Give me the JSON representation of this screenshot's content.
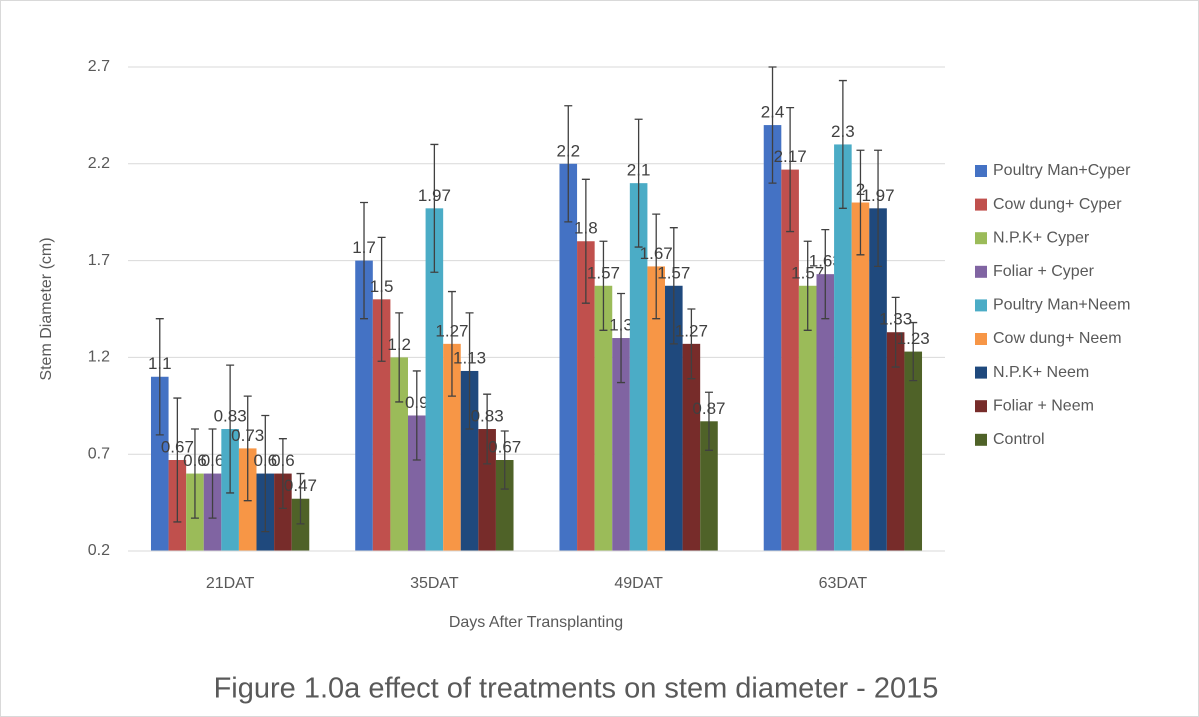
{
  "chart_data": {
    "type": "bar",
    "caption": "Figure 1.0a effect of treatments on stem diameter - 2015",
    "x_label": "Days After Transplanting",
    "y_label": "Stem Diameter (cm)",
    "categories": [
      "21DAT",
      "35DAT",
      "49DAT",
      "63DAT"
    ],
    "ylim": [
      0.2,
      2.7
    ],
    "yticks": [
      0.2,
      0.7,
      1.2,
      1.7,
      2.2,
      2.7
    ],
    "grid": true,
    "legend": "right",
    "series": [
      {
        "name": "Poultry Man+Cyper",
        "color": "#4472c4",
        "values": [
          1.1,
          1.7,
          2.2,
          2.4
        ],
        "errors": [
          0.3,
          0.3,
          0.3,
          0.3
        ]
      },
      {
        "name": "Cow dung+ Cyper",
        "color": "#c0504d",
        "values": [
          0.67,
          1.5,
          1.8,
          2.17
        ],
        "errors": [
          0.32,
          0.32,
          0.32,
          0.32
        ]
      },
      {
        "name": "N.P.K+ Cyper",
        "color": "#9bbb59",
        "values": [
          0.6,
          1.2,
          1.57,
          1.57
        ],
        "errors": [
          0.23,
          0.23,
          0.23,
          0.23
        ]
      },
      {
        "name": "Foliar + Cyper",
        "color": "#8064a2",
        "values": [
          0.6,
          0.9,
          1.3,
          1.63
        ],
        "errors": [
          0.23,
          0.23,
          0.23,
          0.23
        ]
      },
      {
        "name": "Poultry Man+Neem",
        "color": "#4bacc6",
        "values": [
          0.83,
          1.97,
          2.1,
          2.3
        ],
        "errors": [
          0.33,
          0.33,
          0.33,
          0.33
        ]
      },
      {
        "name": "Cow dung+ Neem",
        "color": "#f79646",
        "values": [
          0.73,
          1.27,
          1.67,
          2
        ],
        "errors": [
          0.27,
          0.27,
          0.27,
          0.27
        ]
      },
      {
        "name": "N.P.K+ Neem",
        "color": "#1f497d",
        "values": [
          0.6,
          1.13,
          1.57,
          1.97
        ],
        "errors": [
          0.3,
          0.3,
          0.3,
          0.3
        ]
      },
      {
        "name": "Foliar + Neem",
        "color": "#772c2a",
        "values": [
          0.6,
          0.83,
          1.27,
          1.33
        ],
        "errors": [
          0.18,
          0.18,
          0.18,
          0.18
        ]
      },
      {
        "name": "Control",
        "color": "#4f6228",
        "values": [
          0.47,
          0.67,
          0.87,
          1.23
        ],
        "errors": [
          0.13,
          0.15,
          0.15,
          0.15
        ]
      }
    ]
  }
}
